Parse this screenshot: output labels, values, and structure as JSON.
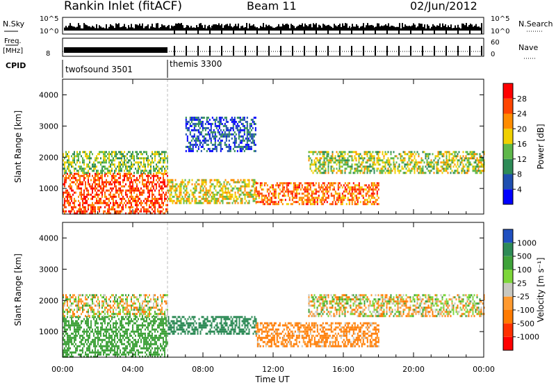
{
  "header": {
    "station": "Rankin Inlet (fitACF)",
    "beam": "Beam 11",
    "date": "02/Jun/2012"
  },
  "summary": {
    "nsky_label": "N.Sky",
    "nsky_ticks": [
      "10^5",
      "10^0"
    ],
    "nsearch_label": "N.Search",
    "nsearch_ticks": [
      "10^5",
      "10^0"
    ],
    "freq_label_1": "Freq.",
    "freq_label_2": "[MHz]",
    "freq_ticks": [
      "8"
    ],
    "nave_label": "Nave",
    "nave_ticks": [
      "60",
      "0"
    ],
    "cpid_label": "CPID",
    "cpid_segments": [
      {
        "name": "twofsound 3501",
        "start_hour": 0,
        "end_hour": 6
      },
      {
        "name": "themis 3300",
        "start_hour": 6,
        "end_hour": 24
      }
    ]
  },
  "colors": {
    "power_scale": [
      "#0000ff",
      "#1f4fb0",
      "#2e8b57",
      "#5fb84a",
      "#f0d000",
      "#ff8c00",
      "#ff4500",
      "#ff0000"
    ],
    "velocity_scale": [
      "#2050c0",
      "#2e8b57",
      "#3fa23a",
      "#7dd63a",
      "#c8c8c0",
      "#ff9a30",
      "#ff7a00",
      "#ff3000",
      "#ff0000"
    ]
  },
  "chart_data": [
    {
      "type": "heatmap",
      "name": "power",
      "xlabel": "Time UT",
      "ylabel": "Slant Range [km]",
      "x_ticks": [
        "00:00",
        "04:00",
        "08:00",
        "12:00",
        "16:00",
        "20:00",
        "00:00"
      ],
      "xlim_hours": [
        0,
        24
      ],
      "y_ticks": [
        1000,
        2000,
        3000,
        4000
      ],
      "ylim": [
        180,
        4500
      ],
      "colorbar_label": "Power [dB]",
      "colorbar_ticks": [
        4,
        8,
        12,
        16,
        20,
        24,
        28
      ],
      "regions": [
        {
          "start_hour": 0,
          "end_hour": 6,
          "range_min": 200,
          "range_max": 1500,
          "power_db": 26
        },
        {
          "start_hour": 0,
          "end_hour": 6,
          "range_min": 1500,
          "range_max": 2200,
          "power_db": 14
        },
        {
          "start_hour": 6,
          "end_hour": 11,
          "range_min": 500,
          "range_max": 1300,
          "power_db": 18
        },
        {
          "start_hour": 11,
          "end_hour": 18,
          "range_min": 500,
          "range_max": 1200,
          "power_db": 24
        },
        {
          "start_hour": 14,
          "end_hour": 24,
          "range_min": 1500,
          "range_max": 2200,
          "power_db": 16
        },
        {
          "start_hour": 7,
          "end_hour": 11,
          "range_min": 2200,
          "range_max": 3300,
          "power_db": 6
        }
      ]
    },
    {
      "type": "heatmap",
      "name": "velocity",
      "xlabel": "Time UT",
      "ylabel": "Slant Range [km]",
      "x_ticks": [
        "00:00",
        "04:00",
        "08:00",
        "12:00",
        "16:00",
        "20:00",
        "00:00"
      ],
      "xlim_hours": [
        0,
        24
      ],
      "y_ticks": [
        1000,
        2000,
        3000,
        4000
      ],
      "ylim": [
        180,
        4500
      ],
      "colorbar_label": "Velocity [m s⁻¹]",
      "colorbar_ticks": [
        "1000",
        "500",
        "100",
        "25",
        "-25",
        "-100",
        "-500",
        "-1000"
      ],
      "regions": [
        {
          "start_hour": 0,
          "end_hour": 6,
          "range_min": 200,
          "range_max": 1500,
          "velocity": 300
        },
        {
          "start_hour": 0,
          "end_hour": 6,
          "range_min": 1500,
          "range_max": 2200,
          "velocity": 0
        },
        {
          "start_hour": 6,
          "end_hour": 11,
          "range_min": 900,
          "range_max": 1500,
          "velocity": 800
        },
        {
          "start_hour": 11,
          "end_hour": 18,
          "range_min": 500,
          "range_max": 1300,
          "velocity": -150
        },
        {
          "start_hour": 14,
          "end_hour": 24,
          "range_min": 1500,
          "range_max": 2200,
          "velocity": 0
        }
      ]
    }
  ]
}
